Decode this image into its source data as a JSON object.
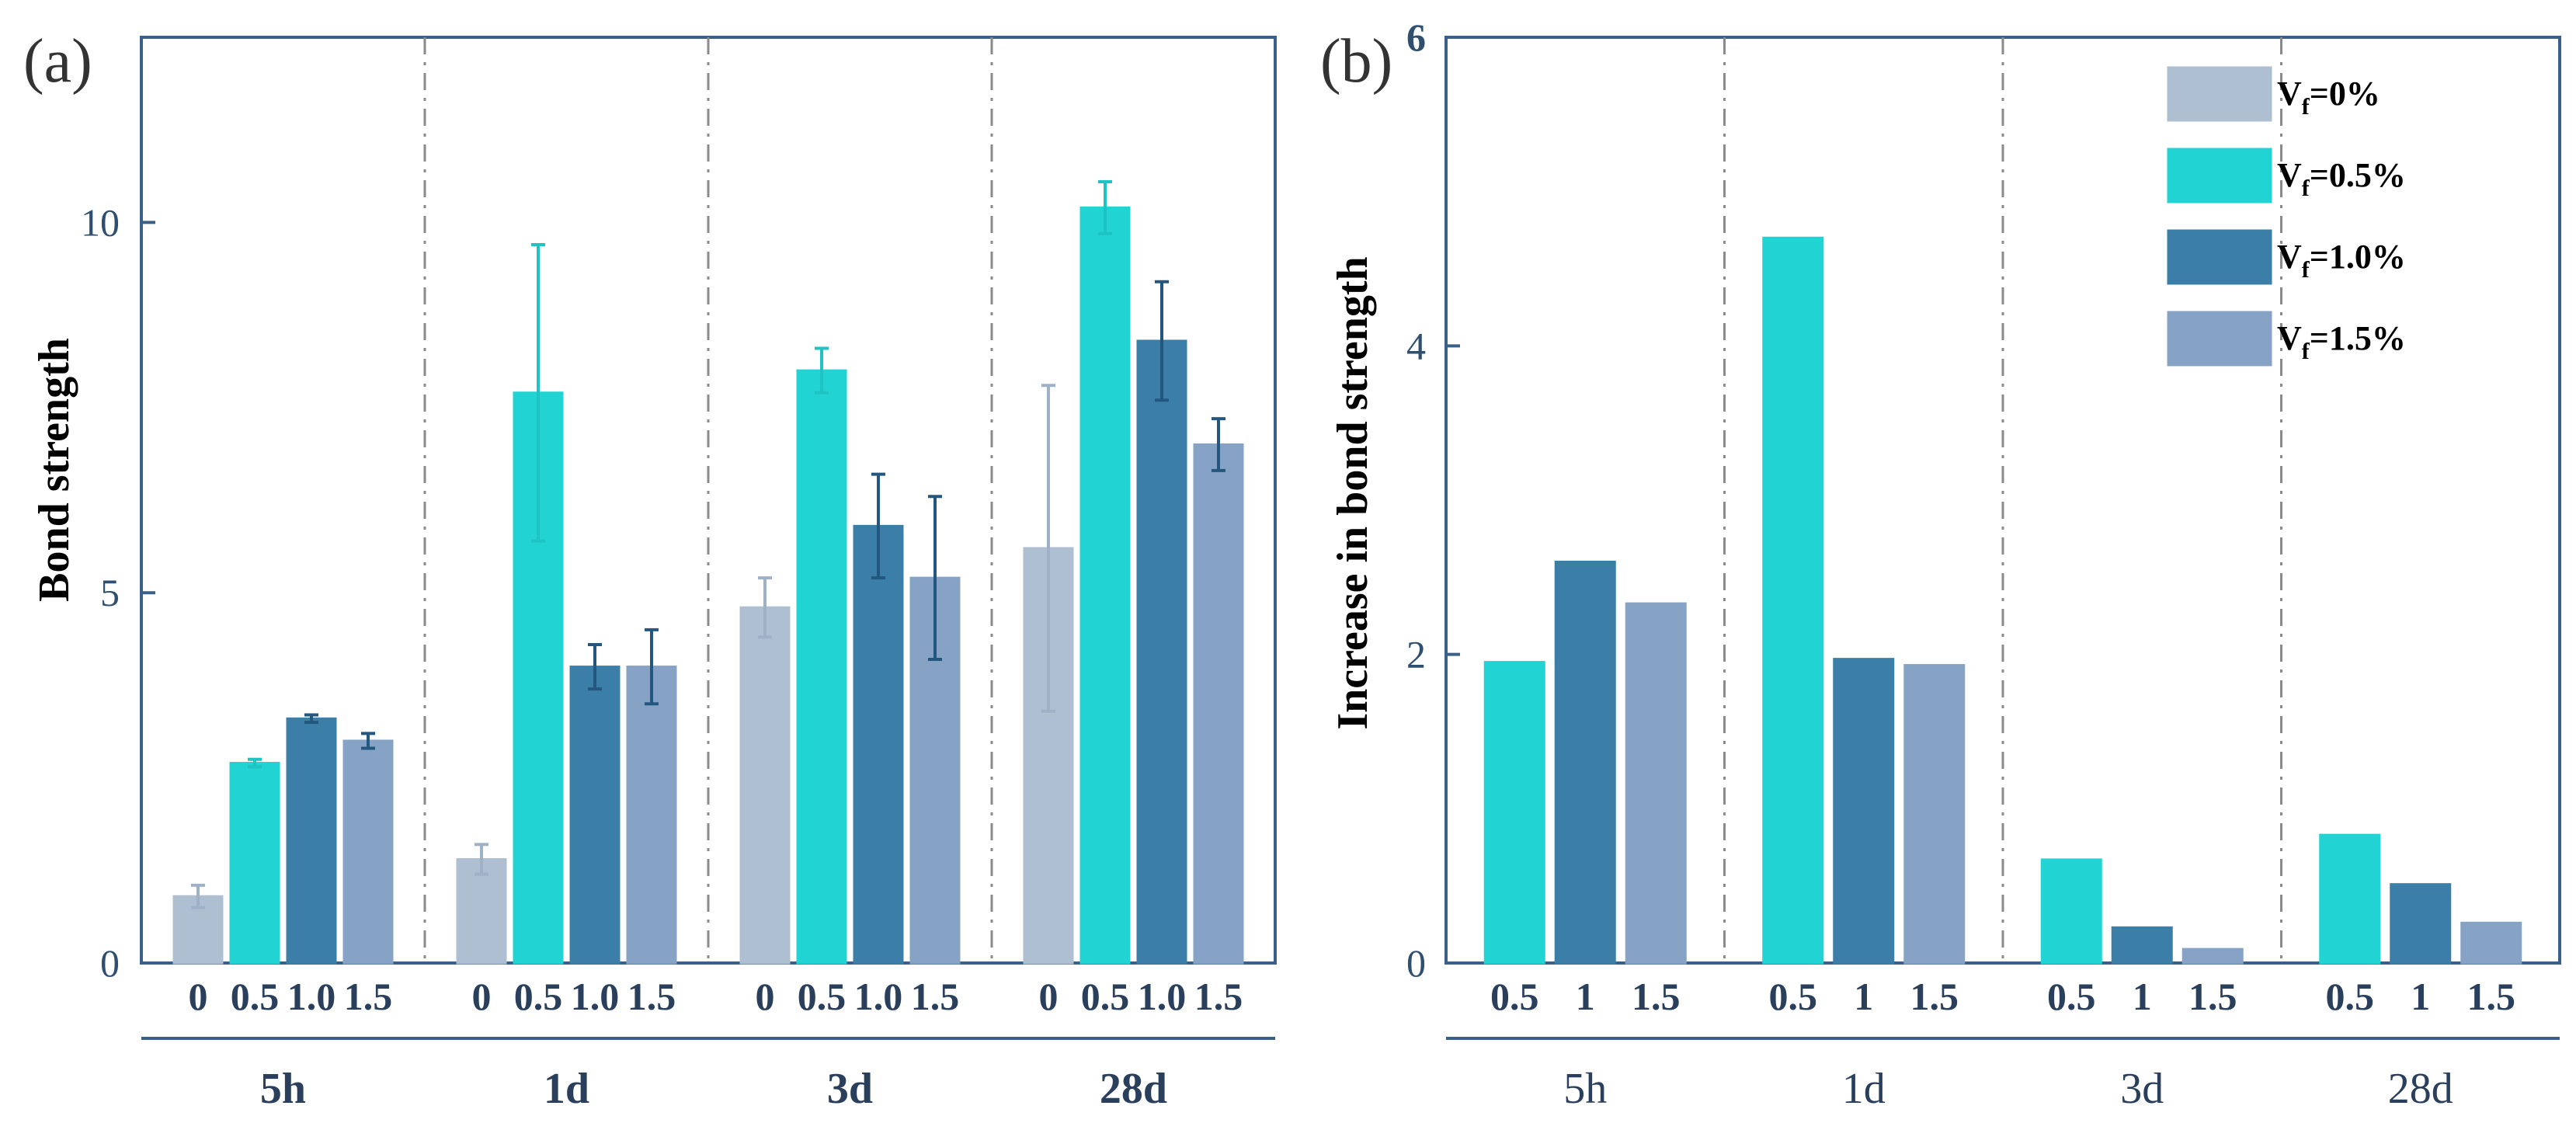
{
  "colors": {
    "axis": "#3a5f88",
    "text": "#2a3f5c",
    "divider": "#8a8a8a",
    "vf0": "#aebfd1",
    "vf05": "#22d3d3",
    "vf10": "#3b7fa8",
    "vf15": "#86a3c6"
  },
  "chart_data": [
    {
      "panel": "(a)",
      "type": "bar",
      "ylabel": "Bond strength",
      "ylim": [
        0,
        12.5
      ],
      "yticks": [
        "0",
        "5",
        "10"
      ],
      "groups": [
        "5h",
        "1d",
        "3d",
        "28d"
      ],
      "subcategories": [
        "0",
        "0.5",
        "1.0",
        "1.5"
      ],
      "series": [
        {
          "name": "V_f=0%",
          "color_key": "vf0",
          "values": [
            0.9,
            1.4,
            4.8,
            5.6
          ],
          "errors": [
            0.15,
            0.2,
            0.4,
            2.2
          ]
        },
        {
          "name": "V_f=0.5%",
          "color_key": "vf05",
          "values": [
            2.7,
            7.7,
            8.0,
            10.2
          ],
          "errors": [
            0.05,
            2.0,
            0.3,
            0.35
          ]
        },
        {
          "name": "V_f=1.0%",
          "color_key": "vf10",
          "values": [
            3.3,
            4.0,
            5.9,
            8.4
          ],
          "errors": [
            0.05,
            0.3,
            0.7,
            0.8
          ]
        },
        {
          "name": "V_f=1.5%",
          "color_key": "vf15",
          "values": [
            3.0,
            4.0,
            5.2,
            7.0
          ],
          "errors": [
            0.1,
            0.5,
            1.1,
            0.35
          ]
        }
      ]
    },
    {
      "panel": "(b)",
      "type": "bar",
      "ylabel": "Increase in bond strength",
      "ylim": [
        0,
        6
      ],
      "yticks": [
        "0",
        "2",
        "4",
        "6"
      ],
      "groups": [
        "5h",
        "1d",
        "3d",
        "28d"
      ],
      "subcategories": [
        "0.5",
        "1",
        "1.5"
      ],
      "series": [
        {
          "name": "V_f=0.5%",
          "color_key": "vf05",
          "values": [
            1.95,
            4.7,
            0.67,
            0.83
          ]
        },
        {
          "name": "V_f=1.0%",
          "color_key": "vf10",
          "values": [
            2.6,
            1.97,
            0.23,
            0.51
          ]
        },
        {
          "name": "V_f=1.5%",
          "color_key": "vf15",
          "values": [
            2.33,
            1.93,
            0.09,
            0.26
          ]
        }
      ]
    }
  ],
  "legend": [
    {
      "main": "V",
      "sub": "f",
      "rest": "=0%",
      "color_key": "vf0"
    },
    {
      "main": "V",
      "sub": "f",
      "rest": "=0.5%",
      "color_key": "vf05"
    },
    {
      "main": "V",
      "sub": "f",
      "rest": "=1.0%",
      "color_key": "vf10"
    },
    {
      "main": "V",
      "sub": "f",
      "rest": "=1.5%",
      "color_key": "vf15"
    }
  ]
}
